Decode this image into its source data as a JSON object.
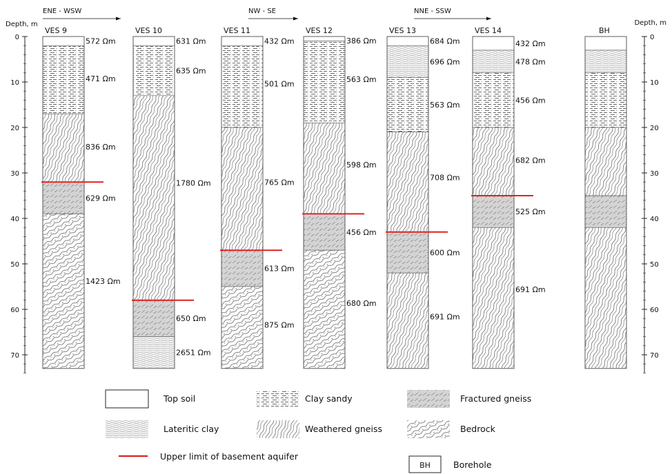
{
  "axes": {
    "left_label": "Depth, m",
    "right_label": "Depth, m",
    "ticks": [
      0,
      10,
      20,
      30,
      40,
      50,
      60,
      70
    ],
    "max_depth": 74
  },
  "profiles": [
    {
      "label": "ENE - WSW"
    },
    {
      "label": "NW - SE"
    },
    {
      "label": "NNE - SSW"
    }
  ],
  "columns": [
    {
      "name": "VES 9",
      "layers": [
        {
          "top": 0,
          "bottom": 2,
          "unit": "topsoil",
          "res": "572 Ωm"
        },
        {
          "top": 2,
          "bottom": 17,
          "unit": "clay_sandy",
          "res": "471 Ωm"
        },
        {
          "top": 17,
          "bottom": 32,
          "unit": "weathered",
          "res": "836 Ωm"
        },
        {
          "top": 32,
          "bottom": 39,
          "unit": "fractured",
          "res": "629 Ωm"
        },
        {
          "top": 39,
          "bottom": 73,
          "unit": "bedrock",
          "res": "1423 Ωm"
        }
      ],
      "aquifer_depth": 32
    },
    {
      "name": "VES 10",
      "layers": [
        {
          "top": 0,
          "bottom": 2,
          "unit": "topsoil",
          "res": "631 Ωm"
        },
        {
          "top": 2,
          "bottom": 13,
          "unit": "clay_sandy",
          "res": "635 Ωm"
        },
        {
          "top": 13,
          "bottom": 58,
          "unit": "weathered",
          "res": "1780 Ωm"
        },
        {
          "top": 58,
          "bottom": 66,
          "unit": "fractured",
          "res": "650 Ωm"
        },
        {
          "top": 66,
          "bottom": 73,
          "unit": "lateritic",
          "res": "2651 Ωm"
        }
      ],
      "aquifer_depth": 58
    },
    {
      "name": "VES 11",
      "layers": [
        {
          "top": 0,
          "bottom": 2,
          "unit": "topsoil",
          "res": "432 Ωm"
        },
        {
          "top": 2,
          "bottom": 20,
          "unit": "clay_sandy",
          "res": "501 Ωm"
        },
        {
          "top": 20,
          "bottom": 47,
          "unit": "weathered",
          "res": "765 Ωm"
        },
        {
          "top": 47,
          "bottom": 55,
          "unit": "fractured",
          "res": "613 Ωm"
        },
        {
          "top": 55,
          "bottom": 73,
          "unit": "bedrock",
          "res": "875 Ωm"
        }
      ],
      "aquifer_depth": 47
    },
    {
      "name": "VES 12",
      "layers": [
        {
          "top": 0,
          "bottom": 1,
          "unit": "topsoil",
          "res": "386 Ωm"
        },
        {
          "top": 1,
          "bottom": 19,
          "unit": "clay_sandy",
          "res": "563 Ωm"
        },
        {
          "top": 19,
          "bottom": 39,
          "unit": "weathered",
          "res": "598 Ωm"
        },
        {
          "top": 39,
          "bottom": 47,
          "unit": "fractured",
          "res": "456 Ωm"
        },
        {
          "top": 47,
          "bottom": 73,
          "unit": "bedrock",
          "res": "680 Ωm"
        }
      ],
      "aquifer_depth": 39
    },
    {
      "name": "VES 13",
      "layers": [
        {
          "top": 0,
          "bottom": 2,
          "unit": "topsoil",
          "res": "684 Ωm"
        },
        {
          "top": 2,
          "bottom": 9,
          "unit": "lateritic",
          "res": "696 Ωm"
        },
        {
          "top": 9,
          "bottom": 21,
          "unit": "clay_sandy",
          "res": "563 Ωm"
        },
        {
          "top": 21,
          "bottom": 43,
          "unit": "weathered",
          "res": "708 Ωm"
        },
        {
          "top": 43,
          "bottom": 52,
          "unit": "fractured",
          "res": "600 Ωm"
        },
        {
          "top": 52,
          "bottom": 73,
          "unit": "weathered",
          "res": "691 Ωm"
        }
      ],
      "aquifer_depth": 43
    },
    {
      "name": "VES 14",
      "layers": [
        {
          "top": 0,
          "bottom": 3,
          "unit": "topsoil",
          "res": "432 Ωm"
        },
        {
          "top": 3,
          "bottom": 8,
          "unit": "lateritic",
          "res": "478 Ωm"
        },
        {
          "top": 8,
          "bottom": 20,
          "unit": "clay_sandy",
          "res": "456 Ωm"
        },
        {
          "top": 20,
          "bottom": 35,
          "unit": "weathered",
          "res": "682 Ωm"
        },
        {
          "top": 35,
          "bottom": 42,
          "unit": "fractured",
          "res": "525 Ωm"
        },
        {
          "top": 42,
          "bottom": 73,
          "unit": "weathered",
          "res": "691 Ωm"
        }
      ],
      "aquifer_depth": 35
    },
    {
      "name": "BH",
      "layers": [
        {
          "top": 0,
          "bottom": 3,
          "unit": "topsoil",
          "res": ""
        },
        {
          "top": 3,
          "bottom": 8,
          "unit": "lateritic",
          "res": ""
        },
        {
          "top": 8,
          "bottom": 20,
          "unit": "clay_sandy",
          "res": ""
        },
        {
          "top": 20,
          "bottom": 35,
          "unit": "weathered",
          "res": ""
        },
        {
          "top": 35,
          "bottom": 42,
          "unit": "fractured",
          "res": ""
        },
        {
          "top": 42,
          "bottom": 73,
          "unit": "weathered",
          "res": ""
        }
      ],
      "aquifer_depth": null
    }
  ],
  "legend": {
    "topsoil": "Top soil",
    "clay_sandy": "Clay sandy",
    "fractured": "Fractured gneiss",
    "lateritic": "Lateritic clay",
    "weathered": "Weathered gneiss",
    "bedrock": "Bedrock",
    "aquifer": "Upper limit of basement aquifer",
    "bh_box": "BH",
    "borehole": "Borehole"
  },
  "colors": {
    "aquifer_line": "#e02020",
    "outline": "#555555",
    "pattern_ink": "#6a6a6a",
    "fracture_fill": "#d4d4d4"
  }
}
